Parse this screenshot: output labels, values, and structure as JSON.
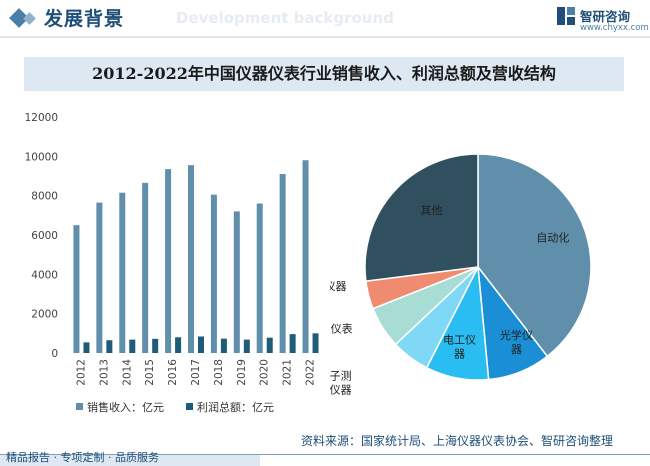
{
  "header": {
    "title": "发展背景",
    "subtitle": "Development background",
    "logo_name": "智研咨询",
    "logo_url": "www.chyxx.com"
  },
  "colors": {
    "revenue": "#5f8fab",
    "profit": "#1f5c78",
    "pie": [
      "#5f8fab",
      "#1a8fd6",
      "#29bdf2",
      "#7fd8f5",
      "#a7ddd5",
      "#ee8b70",
      "#30505f"
    ]
  },
  "chart_data": [
    {
      "type": "bar",
      "title": "2012-2022年中国仪器仪表行业销售收入、利润总额及营收结构",
      "categories": [
        "2012",
        "2013",
        "2014",
        "2015",
        "2016",
        "2017",
        "2018",
        "2019",
        "2020",
        "2021",
        "2022"
      ],
      "series": [
        {
          "name": "销售收入：亿元",
          "values": [
            6500,
            7650,
            8150,
            8650,
            9350,
            9550,
            8050,
            7200,
            7600,
            9100,
            9800
          ]
        },
        {
          "name": "利润总额：亿元",
          "values": [
            540,
            650,
            680,
            720,
            800,
            840,
            730,
            680,
            780,
            960,
            1000
          ]
        }
      ],
      "yticks": [
        0,
        2000,
        4000,
        6000,
        8000,
        10000,
        12000
      ],
      "ylim": [
        0,
        12000
      ],
      "legend_position": "bottom",
      "grid": false
    },
    {
      "type": "pie",
      "slices": [
        {
          "label": "自动化",
          "value": 39.5
        },
        {
          "label": "光学仪器",
          "value": 9.0
        },
        {
          "label": "电工仪器",
          "value": 9.0
        },
        {
          "label": "电子测量仪器",
          "value": 5.5
        },
        {
          "label": "供应仪表",
          "value": 6.0
        },
        {
          "label": "分析仪器",
          "value": 4.0
        },
        {
          "label": "其他",
          "value": 27.0
        }
      ]
    }
  ],
  "footer": {
    "source": "资料来源：国家统计局、上海仪器仪表协会、智研咨询整理",
    "services": "精品报告 · 专项定制 · 品质服务"
  }
}
